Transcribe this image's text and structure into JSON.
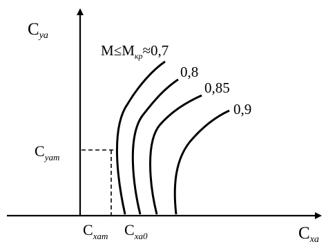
{
  "diagram": {
    "y_axis": {
      "main": "C",
      "sub": "ya"
    },
    "x_axis": {
      "main": "C",
      "sub": "xa"
    },
    "y_marker": {
      "main": "C",
      "sub": "yam"
    },
    "x_marker_left": {
      "main": "C",
      "sub": "xam"
    },
    "x_marker_right": {
      "main": "C",
      "sub": "xa0"
    },
    "curves": [
      {
        "label_prefix": "M≤M",
        "label_sub": "кр",
        "label_suffix": "≈0,7"
      },
      {
        "label": "0,8"
      },
      {
        "label": "0,85"
      },
      {
        "label": "0,9"
      }
    ],
    "colors": {
      "ink": "#000000",
      "background": "#ffffff"
    }
  }
}
